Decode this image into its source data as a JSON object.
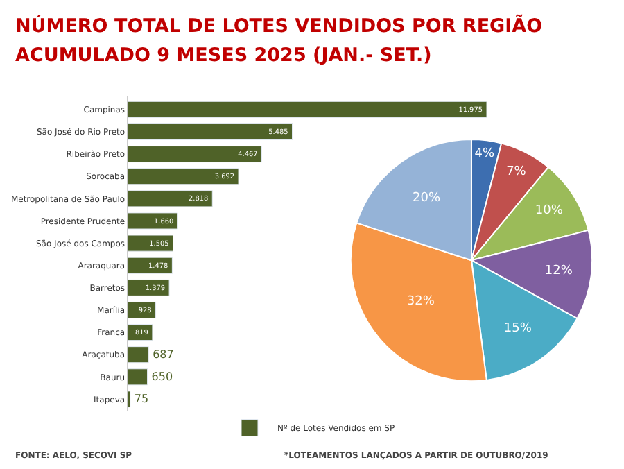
{
  "chart_data": [
    {
      "type": "bar",
      "orientation": "horizontal",
      "title": "NÚMERO TOTAL DE LOTES VENDIDOS POR REGIÃO",
      "subtitle": "ACUMULADO 9 MESES 2025 (JAN.- SET.)",
      "categories": [
        "Campinas",
        "São José do Rio Preto",
        "Ribeirão Preto",
        "Sorocaba",
        "Metropolitana de São Paulo",
        "Presidente Prudente",
        "São José dos Campos",
        "Araraquara",
        "Barretos",
        "Marília",
        "Franca",
        "Araçatuba",
        "Bauru",
        "Itapeva"
      ],
      "series": [
        {
          "name": "Nº de Lotes Vendidos em SP",
          "color": "#4f6228",
          "values": [
            11975,
            5485,
            4467,
            3692,
            2818,
            1660,
            1505,
            1478,
            1379,
            928,
            819,
            687,
            650,
            75
          ],
          "value_labels": [
            "11.975",
            "5.485",
            "4.467",
            "3.692",
            "2.818",
            "1.660",
            "1.505",
            "1.478",
            "1.379",
            "928",
            "819",
            "687",
            "650",
            "75"
          ]
        }
      ],
      "legend": "bottom",
      "annotations": [
        "FONTE: AELO, SECOVI SP",
        "*LOTEAMENTOS LANÇADOS A PARTIR DE OUTUBRO/2019"
      ]
    },
    {
      "type": "pie",
      "categories": [
        null,
        null,
        null,
        null,
        null,
        null,
        null
      ],
      "values": [
        4,
        7,
        10,
        12,
        15,
        32,
        20
      ],
      "colors": [
        "#3d6eb0",
        "#c0504d",
        "#9bbb59",
        "#7f5fa0",
        "#4bacc6",
        "#f79646",
        "#95b3d7"
      ],
      "value_labels": [
        "4%",
        "7%",
        "10%",
        "12%",
        "15%",
        "32%",
        "20%"
      ],
      "legend": false
    }
  ]
}
